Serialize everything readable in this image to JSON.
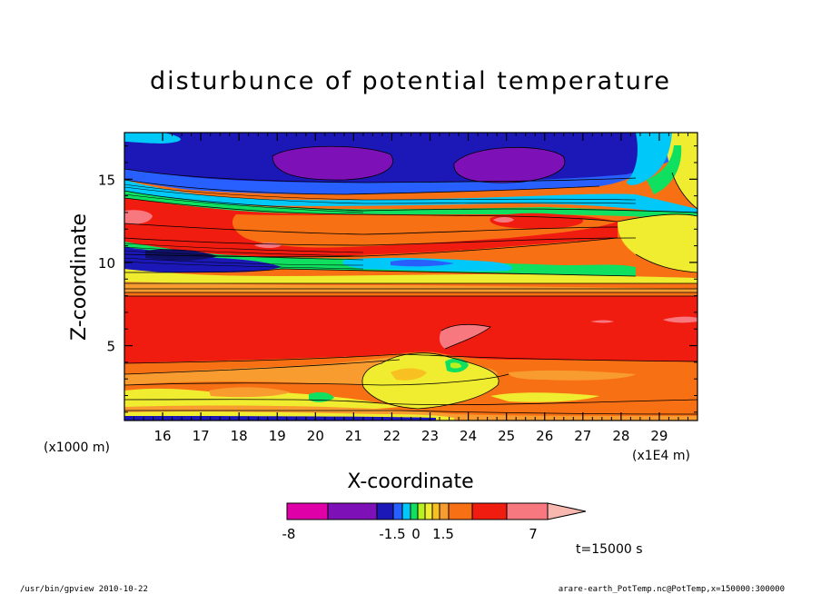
{
  "chart_data": {
    "type": "heatmap",
    "title": "disturbunce of potential temperature",
    "xlabel": "X-coordinate",
    "ylabel": "Z-coordinate",
    "x_unit_left": "(x1000 m)",
    "x_unit_right": "(x1E4 m)",
    "x_ticks": [
      "16",
      "17",
      "18",
      "19",
      "20",
      "21",
      "22",
      "23",
      "24",
      "25",
      "26",
      "27",
      "28",
      "29"
    ],
    "xlim": [
      15.0,
      30.0
    ],
    "y_ticks": [
      "5",
      "10",
      "15"
    ],
    "ylim": [
      0.5,
      17.8
    ],
    "time_label": "t=15000 s",
    "colorbar": {
      "labels": [
        "-8",
        "-1.5",
        "0",
        "1.5",
        "7"
      ],
      "colors": [
        "#e000a8",
        "#7e10b8",
        "#1c18b8",
        "#2860ff",
        "#00c8f8",
        "#10e060",
        "#b8f020",
        "#f0ec30",
        "#f8c020",
        "#f89c30",
        "#f87014",
        "#f01c10",
        "#f87880"
      ]
    },
    "bands": [
      {
        "z": 17.8,
        "level": "blue"
      },
      {
        "z": 15.5,
        "level": "purple"
      },
      {
        "z": 13.8,
        "level": "cyan"
      },
      {
        "z": 13.2,
        "level": "red"
      },
      {
        "z": 11.2,
        "level": "blue"
      },
      {
        "z": 9.6,
        "level": "yellow"
      },
      {
        "z": 8.6,
        "level": "orange"
      },
      {
        "z": 7.8,
        "level": "red"
      },
      {
        "z": 3.6,
        "level": "orange"
      },
      {
        "z": 1.6,
        "level": "yellow"
      },
      {
        "z": 0.5,
        "level": "blue"
      }
    ]
  },
  "footer": {
    "left": "/usr/bin/gpview  2010-10-22",
    "right": "arare-earth_PotTemp.nc@PotTemp,x=150000:300000"
  }
}
